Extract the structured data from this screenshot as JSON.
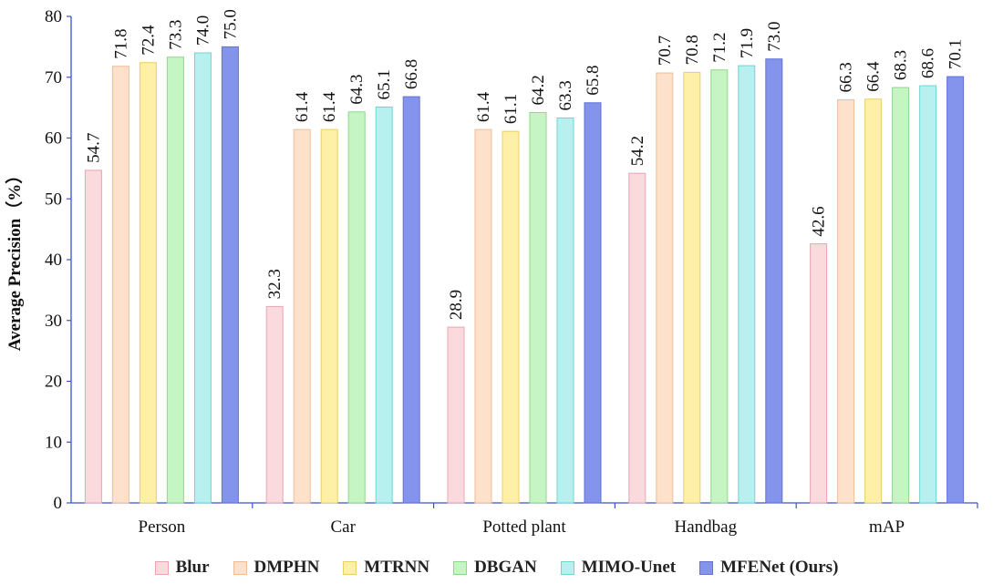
{
  "chart_data": {
    "type": "bar",
    "title": "",
    "xlabel": "",
    "ylabel": "Average Precision（%）",
    "ylim": [
      0,
      80
    ],
    "yticks": [
      "0",
      "10",
      "20",
      "30",
      "40",
      "50",
      "60",
      "70",
      "80"
    ],
    "categories": [
      "Person",
      "Car",
      "Potted plant",
      "Handbag",
      "mAP"
    ],
    "legend_position": "bottom",
    "grid": false,
    "series": [
      {
        "name": "Blur",
        "color": "#fadadd",
        "edge": "#e8a6b4",
        "values": [
          54.7,
          32.3,
          28.9,
          54.2,
          42.6
        ],
        "labels": [
          "54.7",
          "32.3",
          "28.9",
          "54.2",
          "42.6"
        ]
      },
      {
        "name": "DMPHN",
        "color": "#fde1ca",
        "edge": "#efbe98",
        "values": [
          71.8,
          61.4,
          61.4,
          70.7,
          66.3
        ],
        "labels": [
          "71.8",
          "61.4",
          "61.4",
          "70.7",
          "66.3"
        ]
      },
      {
        "name": "MTRNN",
        "color": "#fff0a8",
        "edge": "#eccf6a",
        "values": [
          72.4,
          61.4,
          61.1,
          70.8,
          66.4
        ],
        "labels": [
          "72.4",
          "61.4",
          "61.1",
          "70.8",
          "66.4"
        ]
      },
      {
        "name": "DBGAN",
        "color": "#c5f5c2",
        "edge": "#8fd88a",
        "values": [
          73.3,
          64.3,
          64.2,
          71.2,
          68.3
        ],
        "labels": [
          "73.3",
          "64.3",
          "64.2",
          "71.2",
          "68.3"
        ]
      },
      {
        "name": "MIMO-Unet",
        "color": "#b7f0ee",
        "edge": "#6fd6d3",
        "values": [
          74.0,
          65.1,
          63.3,
          71.9,
          68.6
        ],
        "labels": [
          "74.0",
          "65.1",
          "63.3",
          "71.9",
          "68.6"
        ]
      },
      {
        "name": "MFENet (Ours)",
        "color": "#8493ec",
        "edge": "#6272d6",
        "values": [
          75.0,
          66.8,
          65.8,
          73.0,
          70.1
        ],
        "labels": [
          "75.0",
          "66.8",
          "65.8",
          "73.0",
          "70.1"
        ]
      }
    ]
  }
}
